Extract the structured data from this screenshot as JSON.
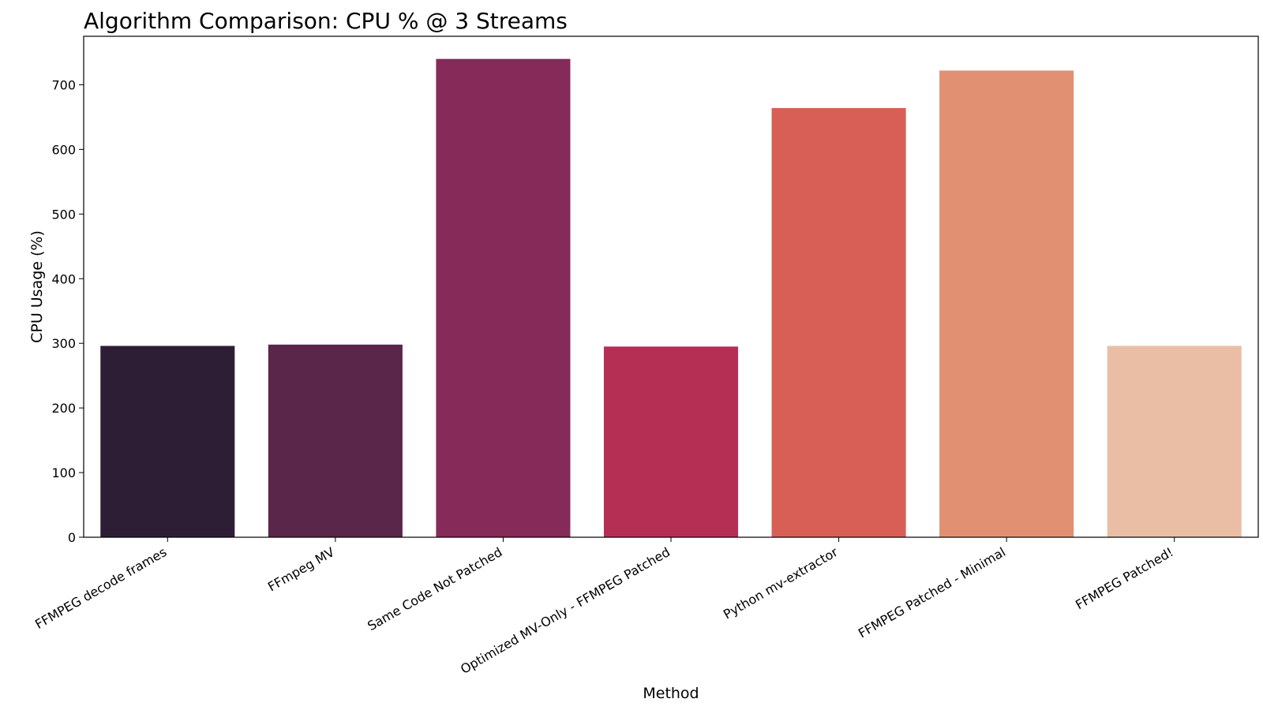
{
  "chart_data": {
    "type": "bar",
    "title": "Algorithm Comparison: CPU % @ 3 Streams",
    "xlabel": "Method",
    "ylabel": "CPU Usage (%)",
    "ylim": [
      0,
      775
    ],
    "yticks": [
      0,
      100,
      200,
      300,
      400,
      500,
      600,
      700
    ],
    "grid": false,
    "categories": [
      "FFMPEG decode frames",
      "FFmpeg MV",
      "Same Code Not Patched",
      "Optimized MV-Only - FFMPEG Patched",
      "Python mv-extractor",
      "FFMPEG Patched - Minimal",
      "FFMPEG Patched!"
    ],
    "values": [
      296,
      298,
      740,
      295,
      664,
      722,
      296
    ],
    "colors": [
      "#2d1e36",
      "#5a2649",
      "#862a59",
      "#b52f54",
      "#d75f56",
      "#e19072",
      "#eabea5"
    ]
  }
}
